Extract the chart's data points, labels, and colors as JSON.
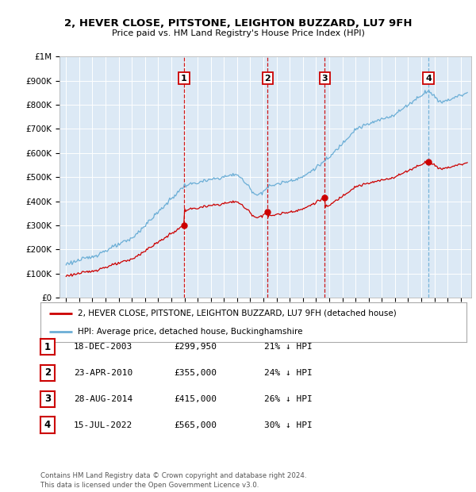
{
  "title": "2, HEVER CLOSE, PITSTONE, LEIGHTON BUZZARD, LU7 9FH",
  "subtitle": "Price paid vs. HM Land Registry's House Price Index (HPI)",
  "ylabel_ticks": [
    "£0",
    "£100K",
    "£200K",
    "£300K",
    "£400K",
    "£500K",
    "£600K",
    "£700K",
    "£800K",
    "£900K",
    "£1M"
  ],
  "ytick_values": [
    0,
    100000,
    200000,
    300000,
    400000,
    500000,
    600000,
    700000,
    800000,
    900000,
    1000000
  ],
  "ylim": [
    0,
    1000000
  ],
  "xlim_start": 1994.5,
  "xlim_end": 2025.8,
  "background_color": "#dce9f5",
  "hpi_line_color": "#6baed6",
  "price_line_color": "#cc0000",
  "purchases": [
    {
      "label": "1",
      "date_str": "18-DEC-2003",
      "date_x": 2003.96,
      "price": 299950,
      "vline_color": "#cc0000",
      "vline_style": "--"
    },
    {
      "label": "2",
      "date_str": "23-APR-2010",
      "date_x": 2010.31,
      "price": 355000,
      "vline_color": "#cc0000",
      "vline_style": "--"
    },
    {
      "label": "3",
      "date_str": "28-AUG-2014",
      "date_x": 2014.65,
      "price": 415000,
      "vline_color": "#cc0000",
      "vline_style": "--"
    },
    {
      "label": "4",
      "date_str": "15-JUL-2022",
      "date_x": 2022.54,
      "price": 565000,
      "vline_color": "#6baed6",
      "vline_style": "--"
    }
  ],
  "legend_line1": "2, HEVER CLOSE, PITSTONE, LEIGHTON BUZZARD, LU7 9FH (detached house)",
  "legend_line2": "HPI: Average price, detached house, Buckinghamshire",
  "table_rows": [
    {
      "num": "1",
      "date": "18-DEC-2003",
      "price": "£299,950",
      "pct": "21% ↓ HPI"
    },
    {
      "num": "2",
      "date": "23-APR-2010",
      "price": "£355,000",
      "pct": "24% ↓ HPI"
    },
    {
      "num": "3",
      "date": "28-AUG-2014",
      "price": "£415,000",
      "pct": "26% ↓ HPI"
    },
    {
      "num": "4",
      "date": "15-JUL-2022",
      "price": "£565,000",
      "pct": "30% ↓ HPI"
    }
  ],
  "footnote": "Contains HM Land Registry data © Crown copyright and database right 2024.\nThis data is licensed under the Open Government Licence v3.0."
}
